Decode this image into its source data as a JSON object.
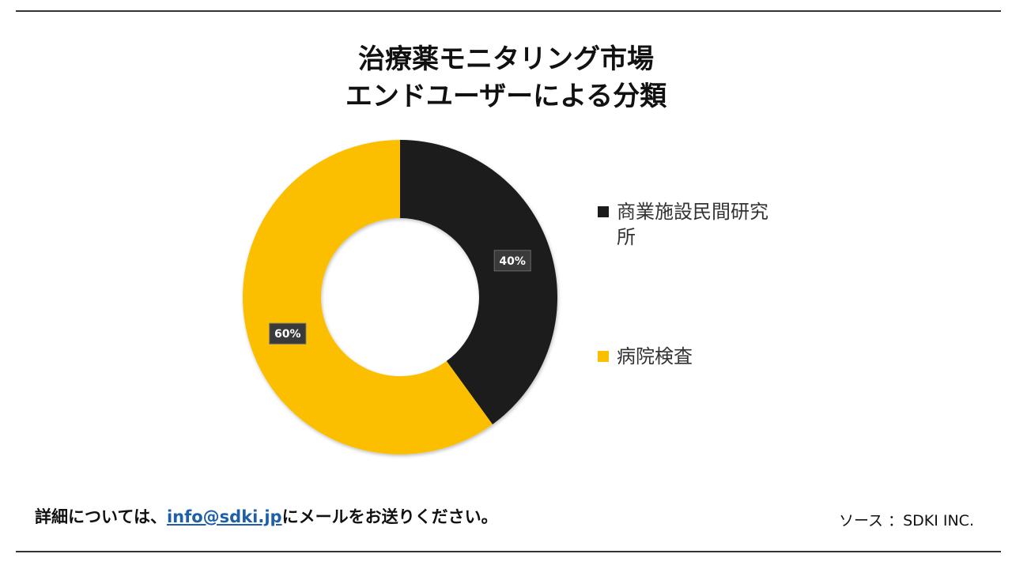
{
  "title": {
    "line1": "治療薬モニタリング市場",
    "line2": "エンドユーザーによる分類"
  },
  "chart_data": {
    "type": "pie",
    "variant": "donut",
    "categories": [
      "商業施設民間研究所",
      "病院検査"
    ],
    "values": [
      40,
      60
    ],
    "data_labels": [
      "40%",
      "60%"
    ],
    "colors": [
      "#1c1a1b",
      "#fcbf00"
    ],
    "legend_position": "right",
    "title": "治療薬モニタリング市場 エンドユーザーによる分類"
  },
  "footer": {
    "contact_prefix": "詳細については、",
    "contact_email": "info@sdki.jp",
    "contact_suffix": "にメールをお送りください。",
    "source": "ソース ：SDKI INC."
  }
}
